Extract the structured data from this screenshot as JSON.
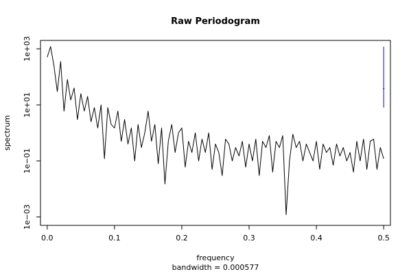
{
  "chart_data": {
    "type": "line",
    "title": "Raw Periodogram",
    "xlabel": "frequency",
    "sublabel": "bandwidth = 0.000577",
    "ylabel": "spectrum",
    "xlim": [
      -0.01,
      0.51
    ],
    "ylim_log10": [
      -3.3,
      3.3
    ],
    "log_y": true,
    "x_ticks": [
      {
        "value": 0.0,
        "label": "0.0"
      },
      {
        "value": 0.1,
        "label": "0.1"
      },
      {
        "value": 0.2,
        "label": "0.2"
      },
      {
        "value": 0.3,
        "label": "0.3"
      },
      {
        "value": 0.4,
        "label": "0.4"
      },
      {
        "value": 0.5,
        "label": "0.5"
      }
    ],
    "y_ticks": [
      {
        "value": 1000,
        "label": "1e+03"
      },
      {
        "value": 10,
        "label": "1e+01"
      },
      {
        "value": 0.1,
        "label": "1e−01"
      },
      {
        "value": 0.001,
        "label": "1e−03"
      }
    ],
    "grid": false,
    "series_color": "#000000",
    "ci_color": "#0000ff",
    "confidence_bar": {
      "x": 0.5,
      "y_low": 8,
      "y_high": 1200,
      "y_mid": 38
    },
    "x": [
      0.0,
      0.005,
      0.01,
      0.015,
      0.02,
      0.025,
      0.03,
      0.035,
      0.04,
      0.045,
      0.05,
      0.055,
      0.06,
      0.065,
      0.07,
      0.075,
      0.08,
      0.085,
      0.09,
      0.095,
      0.1,
      0.105,
      0.11,
      0.115,
      0.12,
      0.125,
      0.13,
      0.135,
      0.14,
      0.145,
      0.15,
      0.155,
      0.16,
      0.165,
      0.17,
      0.175,
      0.18,
      0.185,
      0.19,
      0.195,
      0.2,
      0.205,
      0.21,
      0.215,
      0.22,
      0.225,
      0.23,
      0.235,
      0.24,
      0.245,
      0.25,
      0.255,
      0.26,
      0.265,
      0.27,
      0.275,
      0.28,
      0.285,
      0.29,
      0.295,
      0.3,
      0.305,
      0.31,
      0.315,
      0.32,
      0.325,
      0.33,
      0.335,
      0.34,
      0.345,
      0.35,
      0.355,
      0.36,
      0.365,
      0.37,
      0.375,
      0.38,
      0.385,
      0.39,
      0.395,
      0.4,
      0.405,
      0.41,
      0.415,
      0.42,
      0.425,
      0.43,
      0.435,
      0.44,
      0.445,
      0.45,
      0.455,
      0.46,
      0.465,
      0.47,
      0.475,
      0.48,
      0.485,
      0.49,
      0.495,
      0.5
    ],
    "y": [
      500,
      1200,
      250,
      30,
      350,
      6,
      80,
      15,
      40,
      3,
      25,
      6,
      20,
      2.5,
      8,
      1.5,
      10,
      0.12,
      8,
      2,
      1.5,
      6,
      0.5,
      3,
      0.4,
      1.5,
      0.1,
      2,
      0.3,
      1,
      6,
      0.5,
      2,
      0.08,
      1.5,
      0.015,
      0.5,
      2,
      0.2,
      1,
      1.5,
      0.06,
      0.5,
      0.2,
      1,
      0.1,
      0.6,
      0.2,
      1,
      0.05,
      0.4,
      0.2,
      0.03,
      0.6,
      0.4,
      0.1,
      0.3,
      0.15,
      0.5,
      0.06,
      0.4,
      0.1,
      0.6,
      0.03,
      0.5,
      0.3,
      0.8,
      0.04,
      0.5,
      0.3,
      0.8,
      0.0012,
      0.1,
      0.9,
      0.3,
      0.5,
      0.1,
      0.4,
      0.2,
      0.1,
      0.5,
      0.05,
      0.4,
      0.2,
      0.3,
      0.07,
      0.4,
      0.15,
      0.3,
      0.1,
      0.2,
      0.04,
      0.5,
      0.1,
      0.6,
      0.05,
      0.5,
      0.6,
      0.05,
      0.3,
      0.12
    ]
  }
}
